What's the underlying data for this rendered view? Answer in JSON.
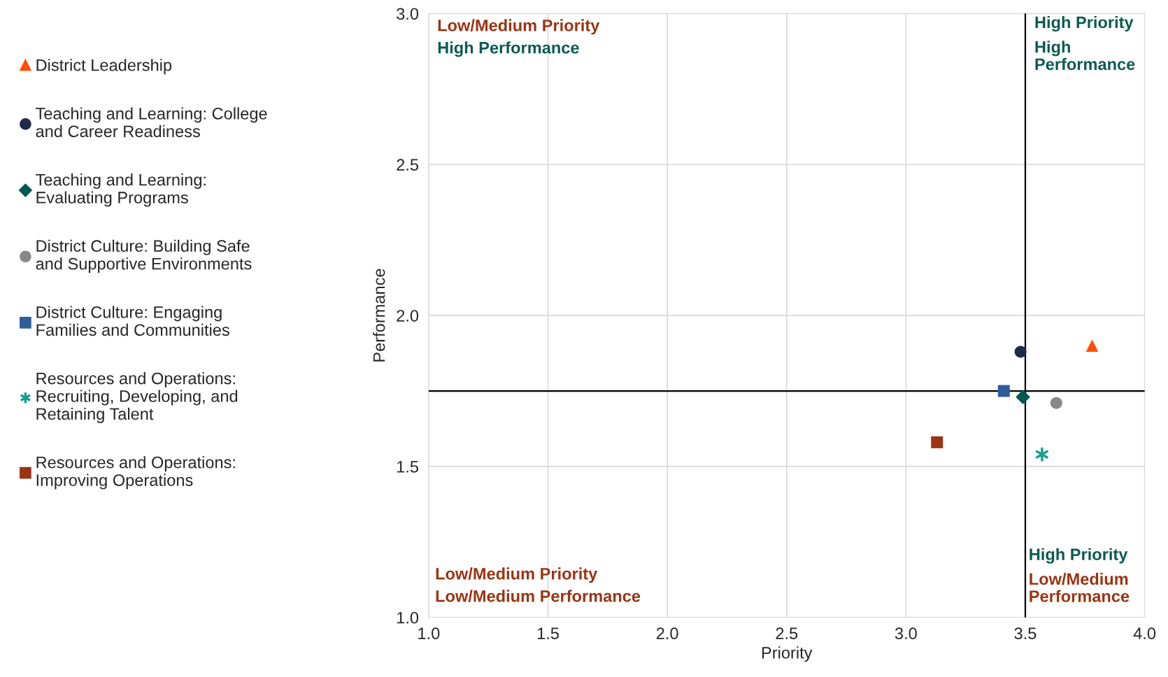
{
  "chart_data": {
    "type": "scatter",
    "xlabel": "Priority",
    "ylabel": "Performance",
    "xlim": [
      1.0,
      4.0
    ],
    "ylim": [
      1.0,
      3.0
    ],
    "xticks": [
      {
        "value": 1.0,
        "label": "1.0"
      },
      {
        "value": 1.5,
        "label": "1.5"
      },
      {
        "value": 2.0,
        "label": "2.0"
      },
      {
        "value": 2.5,
        "label": "2.5"
      },
      {
        "value": 3.0,
        "label": "3.0"
      },
      {
        "value": 3.5,
        "label": "3.5"
      },
      {
        "value": 4.0,
        "label": "4.0"
      }
    ],
    "yticks": [
      {
        "value": 1.0,
        "label": "1.0"
      },
      {
        "value": 1.5,
        "label": "1.5"
      },
      {
        "value": 2.0,
        "label": "2.0"
      },
      {
        "value": 2.5,
        "label": "2.5"
      },
      {
        "value": 3.0,
        "label": "3.0"
      }
    ],
    "grid": true,
    "legend": "left",
    "series": [
      {
        "name": "District Leadership",
        "color": "#fe5000",
        "marker": "triangle",
        "x": [
          3.78
        ],
        "values": [
          1.9
        ]
      },
      {
        "name": "Teaching and Learning: College and Career Readiness",
        "color": "#1f2a48",
        "marker": "circle",
        "x": [
          3.48
        ],
        "values": [
          1.88
        ]
      },
      {
        "name": "Teaching and Learning: Evaluating Programs",
        "color": "#00594f",
        "marker": "diamond",
        "x": [
          3.49
        ],
        "values": [
          1.73
        ]
      },
      {
        "name": "District Culture: Building Safe and Supportive Environments",
        "color": "#888888",
        "marker": "circle",
        "x": [
          3.63
        ],
        "values": [
          1.71
        ]
      },
      {
        "name": "District Culture: Engaging Families and Communities",
        "color": "#2e5e9a",
        "marker": "square",
        "x": [
          3.41
        ],
        "values": [
          1.75
        ]
      },
      {
        "name": "Resources and Operations: Recruiting, Developing, and Retaining Talent",
        "color": "#1a9e8f",
        "marker": "cross",
        "x": [
          3.57
        ],
        "values": [
          1.54
        ]
      },
      {
        "name": "Resources and Operations: Improving Operations",
        "color": "#9a3412",
        "marker": "square",
        "x": [
          3.13
        ],
        "values": [
          1.58
        ]
      }
    ],
    "ref_lines": [
      {
        "axis": "x",
        "value": 3.5,
        "color": "#000000"
      },
      {
        "axis": "y",
        "value": 1.75,
        "color": "#000000"
      }
    ],
    "annotations": [
      "Low/Medium Priority",
      "High Performance",
      "High Priority",
      "High Performance",
      "Low/Medium Priority",
      "Low/Medium Performance",
      "High Priority",
      "Low/Medium Performance"
    ]
  }
}
